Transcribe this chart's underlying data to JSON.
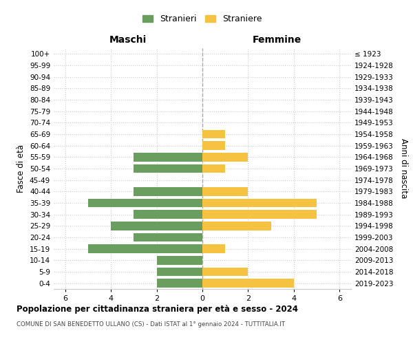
{
  "age_groups_bottom_to_top": [
    "0-4",
    "5-9",
    "10-14",
    "15-19",
    "20-24",
    "25-29",
    "30-34",
    "35-39",
    "40-44",
    "45-49",
    "50-54",
    "55-59",
    "60-64",
    "65-69",
    "70-74",
    "75-79",
    "80-84",
    "85-89",
    "90-94",
    "95-99",
    "100+"
  ],
  "birth_years_bottom_to_top": [
    "2019-2023",
    "2014-2018",
    "2009-2013",
    "2004-2008",
    "1999-2003",
    "1994-1998",
    "1989-1993",
    "1984-1988",
    "1979-1983",
    "1974-1978",
    "1969-1973",
    "1964-1968",
    "1959-1963",
    "1954-1958",
    "1949-1953",
    "1944-1948",
    "1939-1943",
    "1934-1938",
    "1929-1933",
    "1924-1928",
    "≤ 1923"
  ],
  "maschi_bottom_to_top": [
    2,
    2,
    2,
    5,
    3,
    4,
    3,
    5,
    3,
    0,
    3,
    3,
    0,
    0,
    0,
    0,
    0,
    0,
    0,
    0,
    0
  ],
  "femmine_bottom_to_top": [
    4,
    2,
    0,
    1,
    0,
    3,
    5,
    5,
    2,
    0,
    1,
    2,
    1,
    1,
    0,
    0,
    0,
    0,
    0,
    0,
    0
  ],
  "color_maschi": "#6a9e5f",
  "color_femmine": "#f5c242",
  "bg_color": "#ffffff",
  "grid_color": "#cccccc",
  "title": "Popolazione per cittadinanza straniera per età e sesso - 2024",
  "subtitle": "COMUNE DI SAN BENEDETTO ULLANO (CS) - Dati ISTAT al 1° gennaio 2024 - TUTTITALIA.IT",
  "header_left": "Maschi",
  "header_right": "Femmine",
  "ylabel_left": "Fasce di età",
  "ylabel_right": "Anni di nascita",
  "legend_stranieri": "Stranieri",
  "legend_straniere": "Straniere",
  "xlim": 6.5
}
